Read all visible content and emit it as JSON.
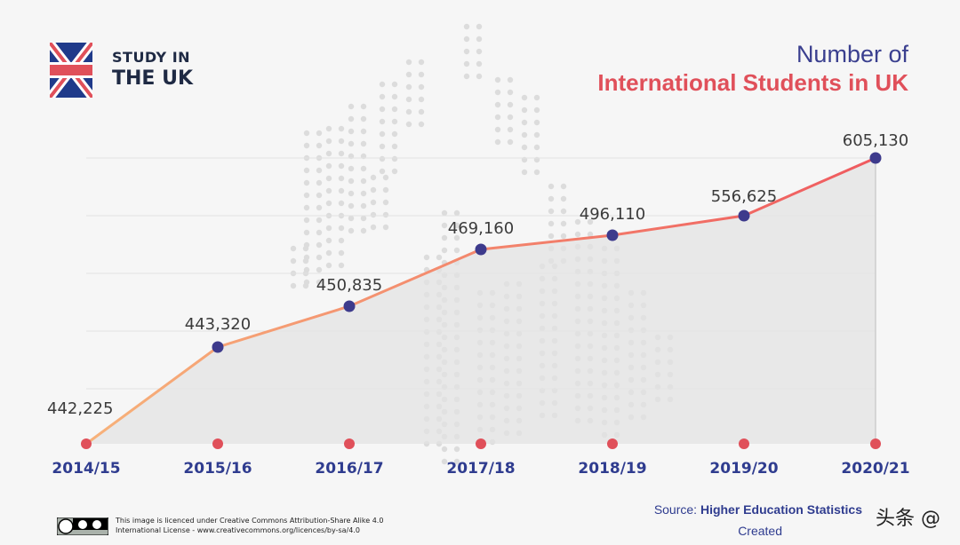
{
  "brand": {
    "line1": "STUDY IN",
    "line2": "THE UK"
  },
  "title": {
    "line1": "Number of",
    "line2": "International Students in UK"
  },
  "chart_data": {
    "type": "area",
    "categories": [
      "2014/15",
      "2015/16",
      "2016/17",
      "2017/18",
      "2018/19",
      "2019/20",
      "2020/21"
    ],
    "values": [
      442225,
      443320,
      450835,
      469160,
      496110,
      556625,
      605130
    ],
    "value_labels": [
      "442,225",
      "443,320",
      "450,835",
      "469,160",
      "496,110",
      "556,625",
      "605,130"
    ],
    "grid": true,
    "colors": {
      "line_start": "#f7b27a",
      "line_end": "#ef5a5f",
      "marker": "#3d3a8c",
      "baseline_marker": "#e0505a",
      "fill": "#e6e6e6"
    }
  },
  "footer": {
    "license_line1": "This image is licenced under Creative Commons Attribution-Share Alike 4.0",
    "license_line2": "International License - www.creativecommons.org/licences/by-sa/4.0",
    "source_prefix": "Source: ",
    "source_name": "Higher Education Statistics",
    "created": "Created",
    "watermark": "头条 @"
  }
}
